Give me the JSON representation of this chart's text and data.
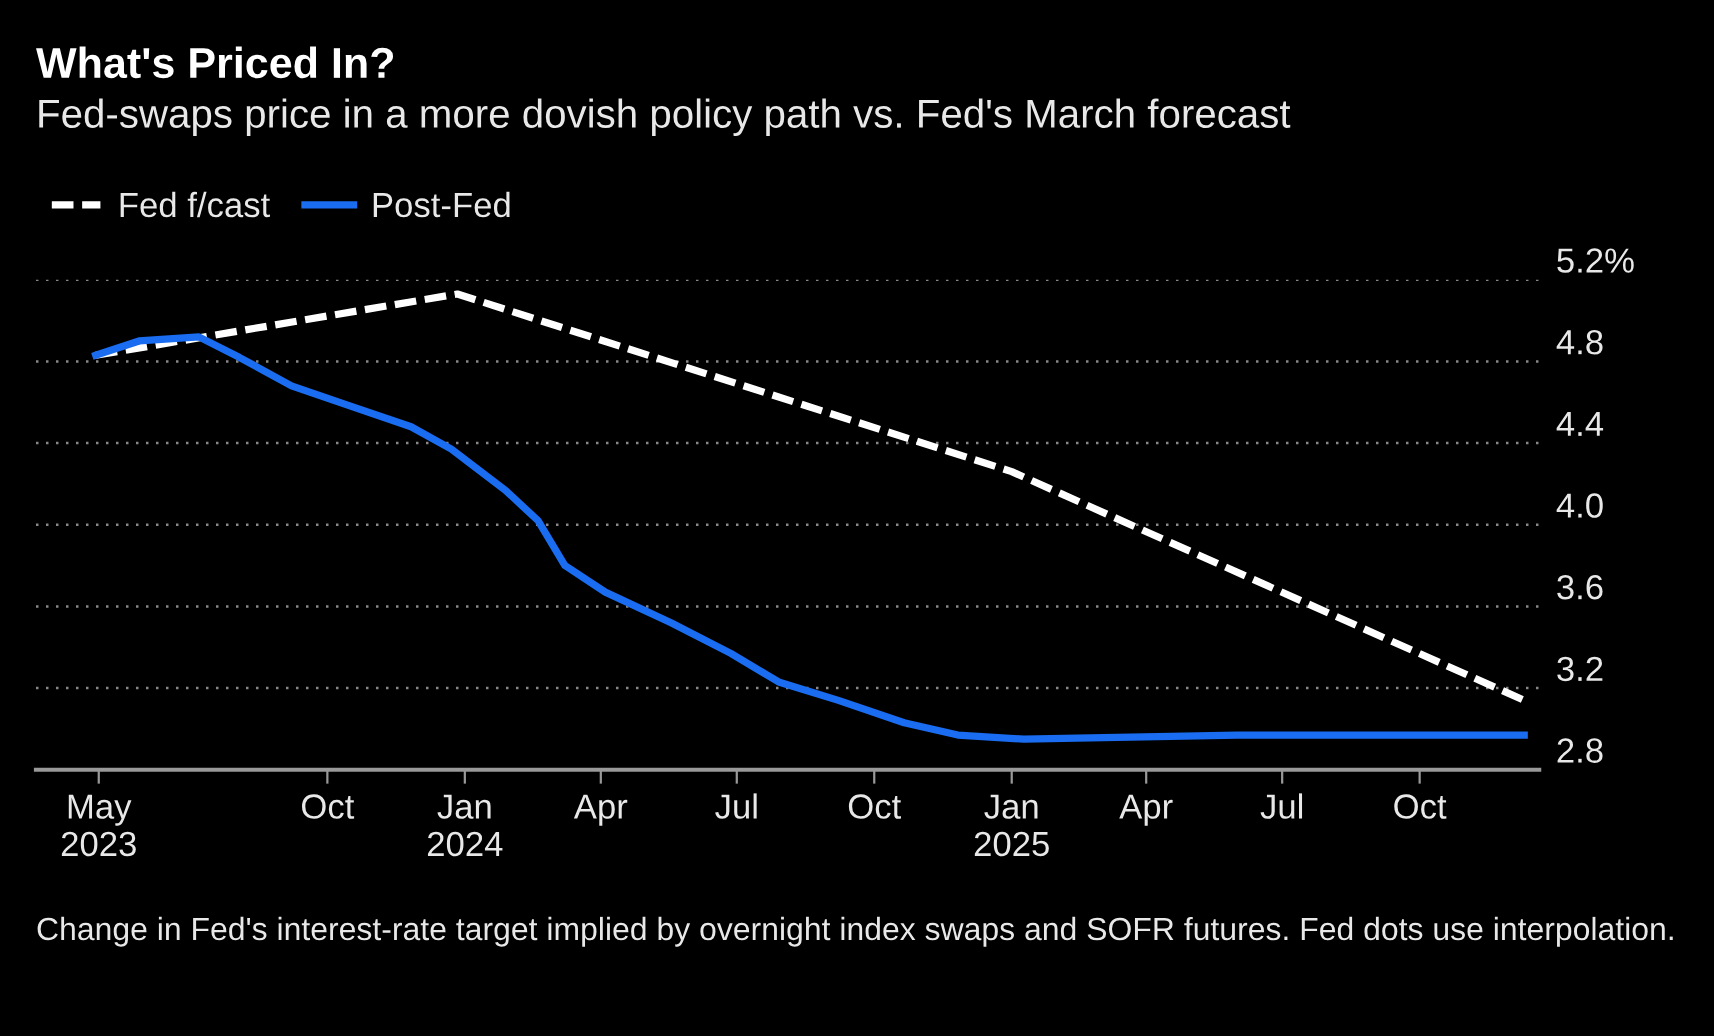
{
  "chart_data": {
    "type": "line",
    "title": "What's Priced In?",
    "subtitle": "Fed-swaps price in a more dovish policy path vs. Fed's March forecast",
    "series": [
      {
        "name": "Fed f/cast",
        "color": "#ffffff",
        "line_style": "dashed",
        "x": [
          "2023-04-29",
          "2023-12-27",
          "2025-01-01",
          "2025-12-10"
        ],
        "values": [
          4.83,
          5.13,
          4.26,
          3.14
        ]
      },
      {
        "name": "Post-Fed",
        "color": "#1a6cf0",
        "line_style": "solid",
        "x": [
          "2023-04-29",
          "2023-05-28",
          "2023-07-07",
          "2023-08-03",
          "2023-09-07",
          "2023-10-17",
          "2023-11-26",
          "2023-12-23",
          "2024-01-28",
          "2024-02-19",
          "2024-03-08",
          "2024-04-04",
          "2024-05-18",
          "2024-06-27",
          "2024-07-29",
          "2024-09-07",
          "2024-10-21",
          "2024-11-26",
          "2025-01-09",
          "2025-06-01",
          "2025-12-10"
        ],
        "values": [
          4.83,
          4.9,
          4.92,
          4.82,
          4.68,
          4.58,
          4.48,
          4.37,
          4.17,
          4.02,
          3.8,
          3.67,
          3.52,
          3.37,
          3.23,
          3.14,
          3.03,
          2.97,
          2.95,
          2.97,
          2.97
        ]
      }
    ],
    "xlim": [
      "2023-03-20",
      "2025-12-20"
    ],
    "xticks": [
      {
        "value": "2023-05-01",
        "label": "May\n2023"
      },
      {
        "value": "2023-10-01",
        "label": "Oct"
      },
      {
        "value": "2024-01-01",
        "label": "Jan\n2024"
      },
      {
        "value": "2024-04-01",
        "label": "Apr"
      },
      {
        "value": "2024-07-01",
        "label": "Jul"
      },
      {
        "value": "2024-10-01",
        "label": "Oct"
      },
      {
        "value": "2025-01-01",
        "label": "Jan\n2025"
      },
      {
        "value": "2025-04-01",
        "label": "Apr"
      },
      {
        "value": "2025-07-01",
        "label": "Jul"
      },
      {
        "value": "2025-10-01",
        "label": "Oct"
      }
    ],
    "ylim": [
      2.8,
      5.2
    ],
    "yticks": [
      {
        "value": 2.8,
        "label": "2.8"
      },
      {
        "value": 3.2,
        "label": "3.2"
      },
      {
        "value": 3.6,
        "label": "3.6"
      },
      {
        "value": 4.0,
        "label": "4.0"
      },
      {
        "value": 4.4,
        "label": "4.4"
      },
      {
        "value": 4.8,
        "label": "4.8"
      },
      {
        "value": 5.2,
        "label": "5.2%"
      }
    ],
    "grid": "y",
    "legend": "top left",
    "annotations": [
      "Change in Fed's interest-rate target implied by overnight index swaps and SOFR futures. Fed dots use interpolation."
    ]
  }
}
